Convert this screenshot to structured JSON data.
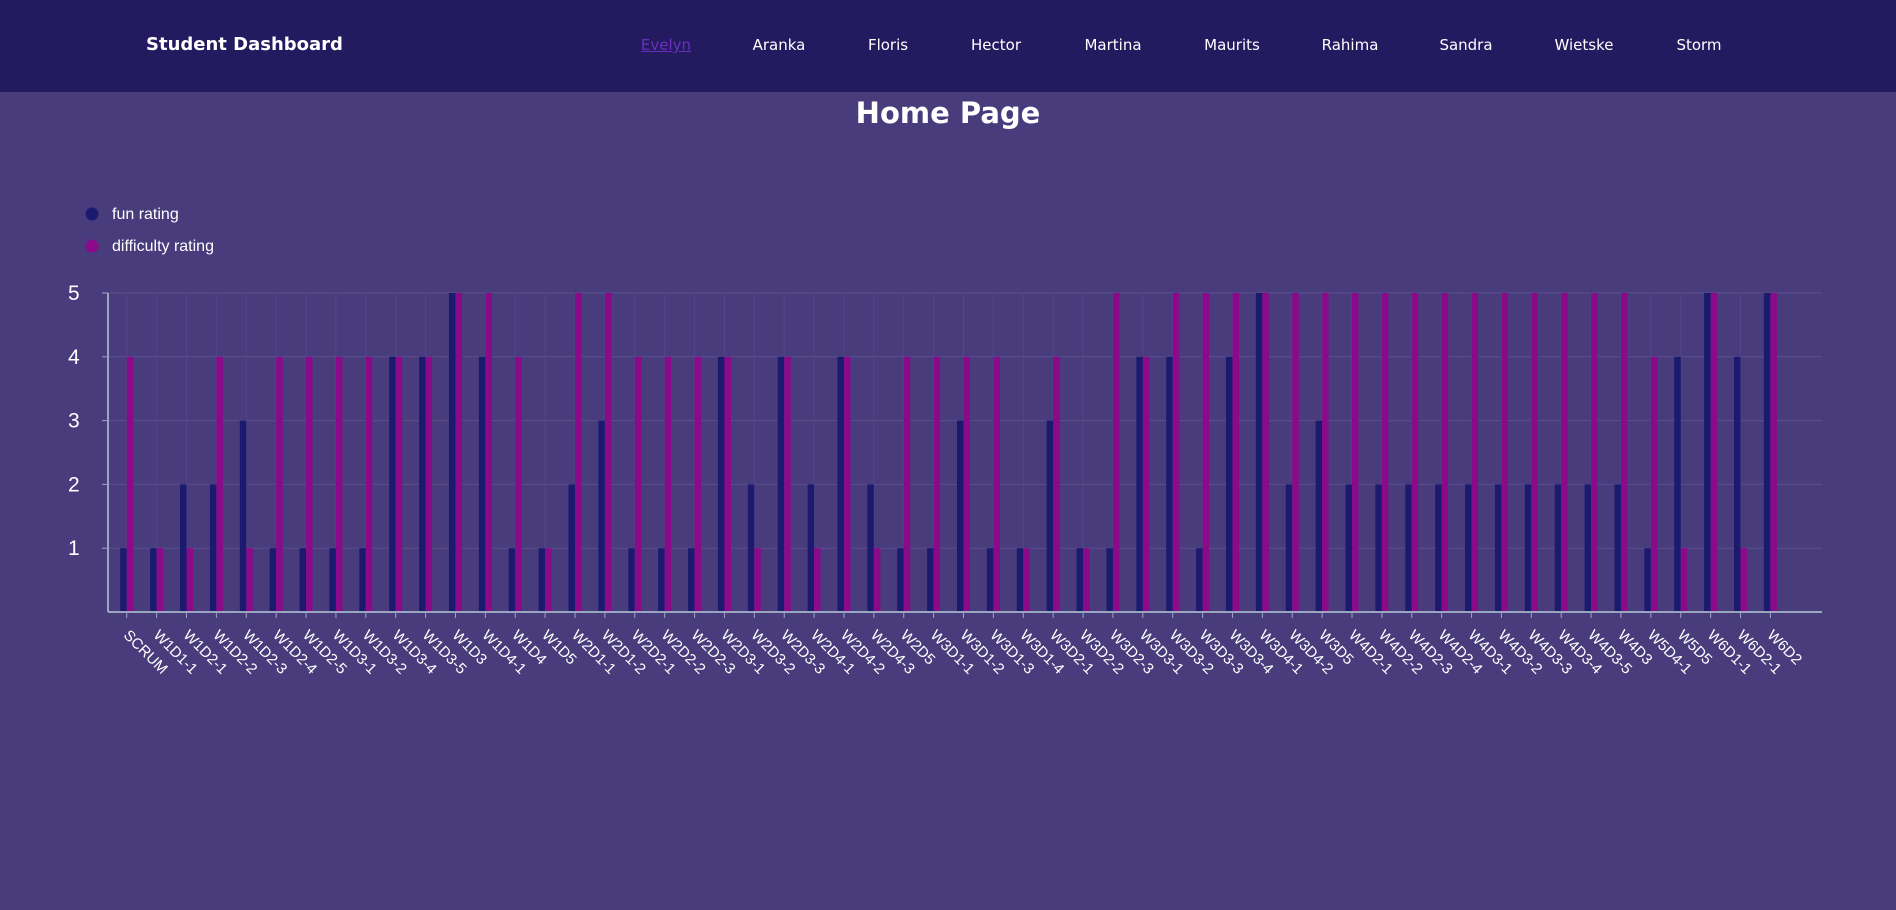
{
  "header": {
    "brand": "Student Dashboard",
    "nav": [
      "Evelyn",
      "Aranka",
      "Floris",
      "Hector",
      "Martina",
      "Maurits",
      "Rahima",
      "Sandra",
      "Wietske",
      "Storm"
    ],
    "active_nav": "Evelyn"
  },
  "page": {
    "title": "Home Page"
  },
  "colors": {
    "header_bg": "#231a5f",
    "page_bg": "#493c7c",
    "fun": "#1b1a6e",
    "difficulty": "#8a0a8a",
    "active_link": "#6b2fc0"
  },
  "chart_data": {
    "type": "bar",
    "ylim": [
      0,
      5
    ],
    "yticks": [
      1,
      2,
      3,
      4,
      5
    ],
    "legend_position": "top-left",
    "categories": [
      "SCRUM",
      "W1D1-1",
      "W1D2-1",
      "W1D2-2",
      "W1D2-3",
      "W1D2-4",
      "W1D2-5",
      "W1D3-1",
      "W1D3-2",
      "W1D3-4",
      "W1D3-5",
      "W1D3",
      "W1D4-1",
      "W1D4",
      "W1D5",
      "W2D1-1",
      "W2D1-2",
      "W2D2-1",
      "W2D2-2",
      "W2D2-3",
      "W2D3-1",
      "W2D3-2",
      "W2D3-3",
      "W2D4-1",
      "W2D4-2",
      "W2D4-3",
      "W2D5",
      "W3D1-1",
      "W3D1-2",
      "W3D1-3",
      "W3D1-4",
      "W3D2-1",
      "W3D2-2",
      "W3D2-3",
      "W3D3-1",
      "W3D3-2",
      "W3D3-3",
      "W3D3-4",
      "W3D4-1",
      "W3D4-2",
      "W3D5",
      "W4D2-1",
      "W4D2-2",
      "W4D2-3",
      "W4D2-4",
      "W4D3-1",
      "W4D3-2",
      "W4D3-3",
      "W4D3-4",
      "W4D3-5",
      "W4D3",
      "W5D4-1",
      "W5D5",
      "W6D1-1",
      "W6D2-1",
      "W6D2"
    ],
    "series": [
      {
        "name": "fun rating",
        "color": "#1b1a6e",
        "values": [
          1,
          1,
          2,
          2,
          3,
          1,
          1,
          1,
          1,
          4,
          4,
          5,
          4,
          1,
          1,
          2,
          3,
          1,
          1,
          1,
          4,
          2,
          4,
          2,
          4,
          2,
          1,
          1,
          3,
          1,
          1,
          3,
          1,
          1,
          4,
          4,
          1,
          4,
          5,
          2,
          3,
          2,
          2,
          2,
          2,
          2,
          2,
          2,
          2,
          2,
          2,
          1,
          4,
          5,
          4,
          5
        ]
      },
      {
        "name": "difficulty rating",
        "color": "#8a0a8a",
        "values": [
          4,
          1,
          1,
          4,
          1,
          4,
          4,
          4,
          4,
          4,
          4,
          5,
          5,
          4,
          1,
          5,
          5,
          4,
          4,
          4,
          4,
          1,
          4,
          1,
          4,
          1,
          4,
          4,
          4,
          4,
          1,
          4,
          1,
          5,
          4,
          5,
          5,
          5,
          5,
          5,
          5,
          5,
          5,
          5,
          5,
          5,
          5,
          5,
          5,
          5,
          5,
          4,
          1,
          5,
          1,
          5
        ]
      }
    ]
  }
}
